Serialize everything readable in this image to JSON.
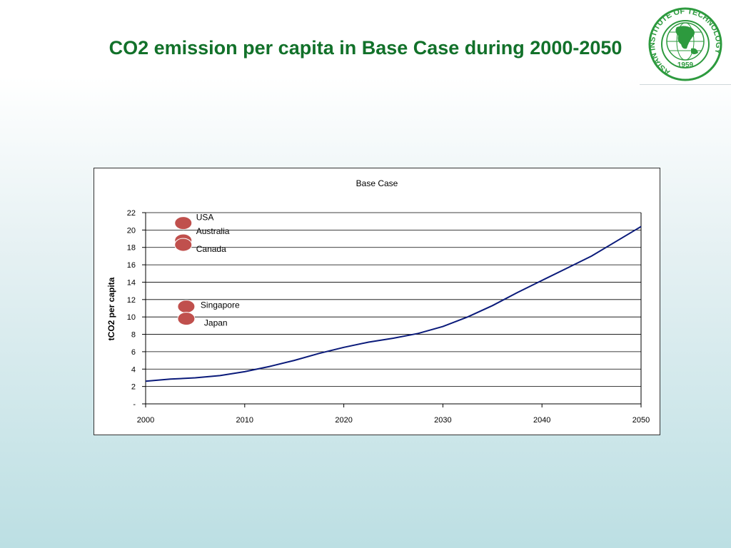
{
  "slide": {
    "title": "CO2 emission per capita in Base Case during 2000-2050"
  },
  "logo": {
    "icon": "ait-seal-icon",
    "ring_text": "ASIAN INSTITUTE OF TECHNOLOGY",
    "year": "1959",
    "color": "#2d9a3e"
  },
  "chart_data": {
    "type": "line",
    "title": "Base Case",
    "xlabel": "",
    "ylabel": "tCO2 per capita",
    "xlim": [
      2000,
      2050
    ],
    "ylim": [
      0,
      22
    ],
    "x_ticks": [
      "2000",
      "2010",
      "2020",
      "2030",
      "2040",
      "2050"
    ],
    "y_ticks": [
      "-",
      "2",
      "4",
      "6",
      "8",
      "10",
      "12",
      "14",
      "16",
      "18",
      "20",
      "22"
    ],
    "grid": "horizontal",
    "series": [
      {
        "color": "#0a1a7a",
        "x": [
          2000,
          2002.5,
          2005,
          2007.5,
          2010,
          2012.5,
          2015,
          2017.5,
          2020,
          2022.5,
          2025,
          2027.5,
          2030,
          2032.5,
          2035,
          2037.5,
          2040,
          2042.5,
          2045,
          2047.5,
          2050
        ],
        "y": [
          2.6,
          2.85,
          3.0,
          3.25,
          3.7,
          4.3,
          5.0,
          5.8,
          6.5,
          7.1,
          7.55,
          8.1,
          8.9,
          10.0,
          11.3,
          12.8,
          14.2,
          15.6,
          17.0,
          18.7,
          20.4
        ]
      }
    ],
    "reference_points": [
      {
        "label": "USA",
        "x": 2003.8,
        "y": 20.8,
        "color": "#c0504d"
      },
      {
        "label": "Australia",
        "x": 2003.8,
        "y": 18.8,
        "color": "#c0504d"
      },
      {
        "label": "Canada",
        "x": 2003.8,
        "y": 18.3,
        "color": "#c0504d"
      },
      {
        "label": "Singapore",
        "x": 2004.1,
        "y": 11.2,
        "color": "#c0504d"
      },
      {
        "label": "Japan",
        "x": 2004.1,
        "y": 9.8,
        "color": "#c0504d"
      }
    ]
  }
}
